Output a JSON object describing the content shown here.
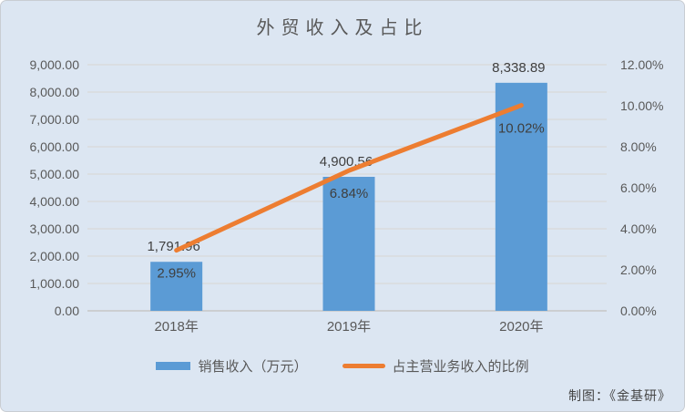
{
  "credit": "制图：《金基研》",
  "colors": {
    "background": "#dce6f2",
    "bar": "#5b9bd5",
    "line": "#ed7d31",
    "gridline": "#d9d9d9",
    "axis_line": "#c6c6c6",
    "axis_text": "#595959",
    "data_label_text": "#3f3f3f"
  },
  "chart_data": {
    "type": "bar",
    "subtype": "bar-and-line-combo",
    "title": "外贸收入及占比",
    "categories": [
      "2018年",
      "2019年",
      "2020年"
    ],
    "series": [
      {
        "name": "销售收入（万元）",
        "type": "bar",
        "axis": "left",
        "color": "#5b9bd5",
        "values": [
          1791.96,
          4900.56,
          8338.89
        ],
        "labels": [
          "1,791.96",
          "4,900.56",
          "8,338.89"
        ]
      },
      {
        "name": "占主营业务收入的比例",
        "type": "line",
        "axis": "right",
        "color": "#ed7d31",
        "values": [
          2.95,
          6.84,
          10.02
        ],
        "labels": [
          "2.95%",
          "6.84%",
          "10.02%"
        ]
      }
    ],
    "left_axis": {
      "min": 0,
      "max": 9000,
      "step": 1000,
      "tick_labels": [
        "0.00",
        "1,000.00",
        "2,000.00",
        "3,000.00",
        "4,000.00",
        "5,000.00",
        "6,000.00",
        "7,000.00",
        "8,000.00",
        "9,000.00"
      ]
    },
    "right_axis": {
      "min": 0,
      "max": 12,
      "step": 2,
      "tick_labels": [
        "0.00%",
        "2.00%",
        "4.00%",
        "6.00%",
        "8.00%",
        "10.00%",
        "12.00%"
      ]
    },
    "grid": true,
    "legend_position": "bottom"
  }
}
